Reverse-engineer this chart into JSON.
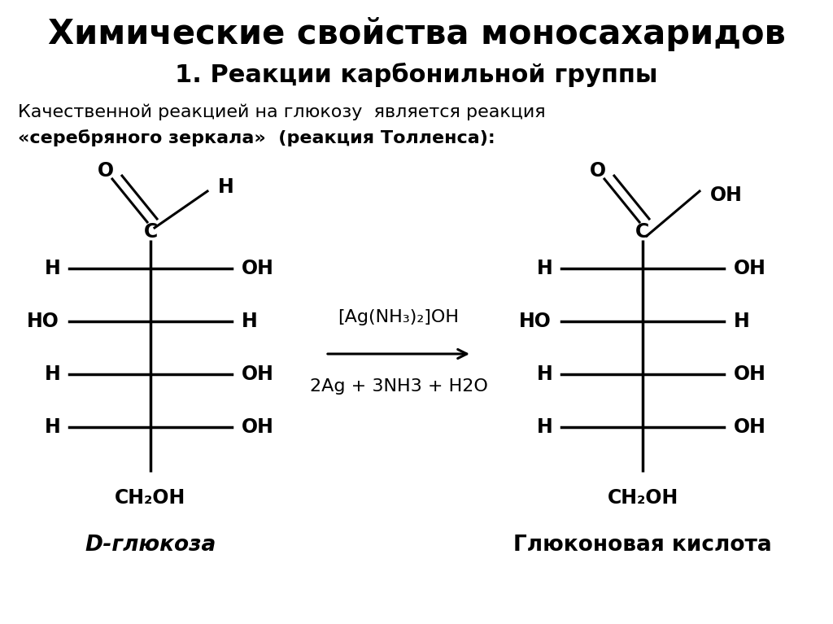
{
  "title": "Химические свойства моносахаридов",
  "subtitle": "1. Реакции карбонильной группы",
  "desc_line1": "Качественной реакцией на глюкозу  является реакция",
  "desc_line2": "«серебряного зеркала»  (реакция Толленса):",
  "reagent_line1": "[Ag(NH₃)₂]OH",
  "reagent_line2": "2Ag + 3NH3 + H2O",
  "label_glucose": "D-глюкоза",
  "label_acid": "Глюконовая кислота",
  "bg_color": "#ffffff",
  "text_color": "#000000",
  "line_color": "#000000"
}
